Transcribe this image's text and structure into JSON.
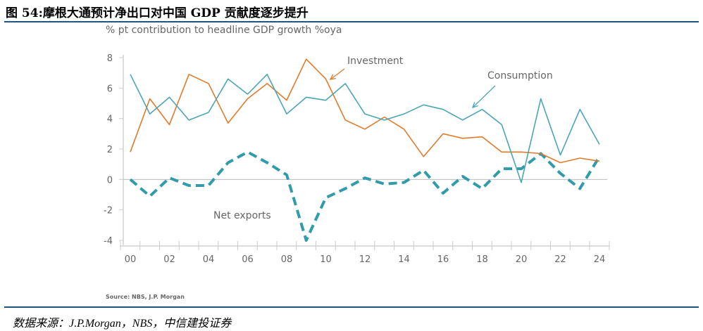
{
  "header": {
    "title": "图 54:摩根大通预计净出口对中国 GDP 贡献度逐步提升"
  },
  "footer": {
    "source_note": "数据来源：J.P.Morgan，NBS，中信建投证券"
  },
  "chart_data": {
    "type": "line",
    "title": "",
    "subtitle": "% pt contribution to headline GDP growth %oya",
    "source": "Source: NBS, J.P. Morgan",
    "x": [
      2000,
      2001,
      2002,
      2003,
      2004,
      2005,
      2006,
      2007,
      2008,
      2009,
      2010,
      2011,
      2012,
      2013,
      2014,
      2015,
      2016,
      2017,
      2018,
      2019,
      2020,
      2021,
      2022,
      2023,
      2024
    ],
    "x_tick_labels": [
      "00",
      "02",
      "04",
      "06",
      "08",
      "10",
      "12",
      "14",
      "16",
      "18",
      "20",
      "22",
      "24"
    ],
    "y_tick_labels": [
      "8",
      "6",
      "4",
      "2",
      "0",
      "-2",
      "-4"
    ],
    "ylim": [
      -4,
      8
    ],
    "grid": false,
    "series": [
      {
        "name": "Consumption",
        "color": "#4aa6b6",
        "style": "solid",
        "values": [
          6.9,
          4.3,
          5.4,
          3.9,
          4.4,
          6.6,
          5.6,
          6.9,
          4.3,
          5.4,
          5.2,
          6.3,
          4.3,
          3.9,
          4.3,
          4.9,
          4.6,
          3.9,
          4.6,
          3.6,
          -0.2,
          5.3,
          1.6,
          4.6,
          2.3
        ]
      },
      {
        "name": "Investment",
        "color": "#e07b2a",
        "style": "solid",
        "values": [
          1.8,
          5.3,
          3.6,
          6.9,
          6.3,
          3.7,
          5.3,
          6.3,
          5.2,
          7.9,
          6.6,
          3.9,
          3.3,
          4.1,
          3.3,
          1.5,
          3.0,
          2.7,
          2.8,
          1.8,
          1.8,
          1.7,
          1.1,
          1.4,
          1.2
        ]
      },
      {
        "name": "Net exports",
        "color": "#2f9bab",
        "style": "dashed",
        "values": [
          0,
          -1.1,
          0.1,
          -0.4,
          -0.4,
          1.1,
          1.8,
          1.1,
          0.3,
          -4.0,
          -1.2,
          -0.6,
          0.1,
          -0.3,
          -0.2,
          0.6,
          -0.9,
          0.2,
          -0.6,
          0.7,
          0.7,
          1.7,
          0.4,
          -0.6,
          1.5
        ]
      }
    ]
  }
}
